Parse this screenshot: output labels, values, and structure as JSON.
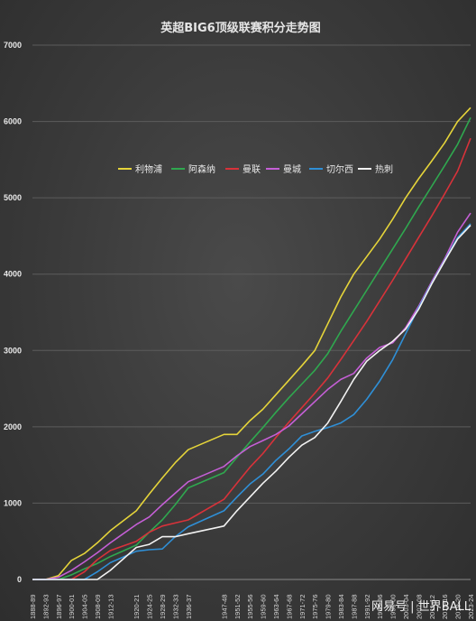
{
  "chart_data": {
    "type": "line",
    "title": "英超BIG6顶级联赛积分走势图",
    "ylim": [
      0,
      7000
    ],
    "yticks": [
      0,
      1000,
      2000,
      3000,
      4000,
      5000,
      6000,
      7000
    ],
    "grid": true,
    "legend_position": "top-center",
    "x_tick_labels": [
      "1888-89",
      "1892-93",
      "1896-97",
      "1900-01",
      "1904-05",
      "1908-09",
      "1912-13",
      "1920-21",
      "1924-25",
      "1928-29",
      "1932-33",
      "1936-37",
      "1947-48",
      "1951-52",
      "1955-56",
      "1959-60",
      "1963-64",
      "1967-68",
      "1971-72",
      "1975-76",
      "1979-80",
      "1983-84",
      "1987-88",
      "1991-92",
      "1995-96",
      "1999-00",
      "2003-04",
      "2007-08",
      "2011-12",
      "2015-16",
      "2019-20",
      "2023-24"
    ],
    "x": [
      1889,
      1893,
      1897,
      1901,
      1905,
      1909,
      1913,
      1921,
      1925,
      1929,
      1933,
      1937,
      1948,
      1952,
      1956,
      1960,
      1964,
      1968,
      1972,
      1976,
      1980,
      1984,
      1988,
      1992,
      1996,
      2000,
      2004,
      2008,
      2012,
      2016,
      2020,
      2024
    ],
    "series": [
      {
        "name": "利物浦",
        "color": "#e5d43a",
        "values": [
          0,
          0,
          50,
          250,
          340,
          480,
          640,
          900,
          1120,
          1330,
          1530,
          1700,
          1900,
          1900,
          2080,
          2230,
          2420,
          2610,
          2800,
          3000,
          3350,
          3700,
          4000,
          4230,
          4460,
          4720,
          5000,
          5250,
          5480,
          5720,
          6000,
          6180
        ]
      },
      {
        "name": "阿森纳",
        "color": "#2fa84f",
        "values": [
          0,
          0,
          0,
          60,
          140,
          210,
          300,
          450,
          620,
          780,
          980,
          1200,
          1400,
          1600,
          1800,
          1990,
          2190,
          2380,
          2560,
          2740,
          2960,
          3250,
          3520,
          3790,
          4060,
          4330,
          4600,
          4880,
          5150,
          5420,
          5700,
          6050
        ]
      },
      {
        "name": "曼联",
        "color": "#d8323a",
        "values": [
          0,
          0,
          0,
          0,
          100,
          260,
          380,
          500,
          620,
          700,
          740,
          780,
          1050,
          1260,
          1470,
          1650,
          1860,
          2060,
          2250,
          2440,
          2640,
          2880,
          3130,
          3380,
          3650,
          3920,
          4200,
          4480,
          4760,
          5050,
          5350,
          5780
        ]
      },
      {
        "name": "曼城",
        "color": "#c55fd6",
        "values": [
          0,
          0,
          30,
          120,
          230,
          350,
          480,
          720,
          820,
          980,
          1130,
          1280,
          1480,
          1620,
          1740,
          1820,
          1900,
          2010,
          2170,
          2330,
          2490,
          2620,
          2700,
          2900,
          3040,
          3100,
          3300,
          3580,
          3900,
          4200,
          4550,
          4800
        ]
      },
      {
        "name": "切尔西",
        "color": "#2f8fd6",
        "values": [
          0,
          0,
          0,
          0,
          0,
          100,
          220,
          370,
          390,
          400,
          560,
          690,
          900,
          1080,
          1250,
          1380,
          1560,
          1710,
          1880,
          1940,
          1990,
          2050,
          2160,
          2360,
          2600,
          2880,
          3220,
          3560,
          3880,
          4180,
          4480,
          4660
        ]
      },
      {
        "name": "热刺",
        "color": "#f2f2f2",
        "values": [
          0,
          0,
          0,
          0,
          0,
          0,
          120,
          420,
          460,
          560,
          560,
          600,
          700,
          900,
          1080,
          1260,
          1420,
          1600,
          1760,
          1860,
          2050,
          2330,
          2620,
          2860,
          3000,
          3120,
          3280,
          3540,
          3870,
          4170,
          4460,
          4640
        ]
      }
    ]
  },
  "watermark": "网易号 | 世界BALL"
}
